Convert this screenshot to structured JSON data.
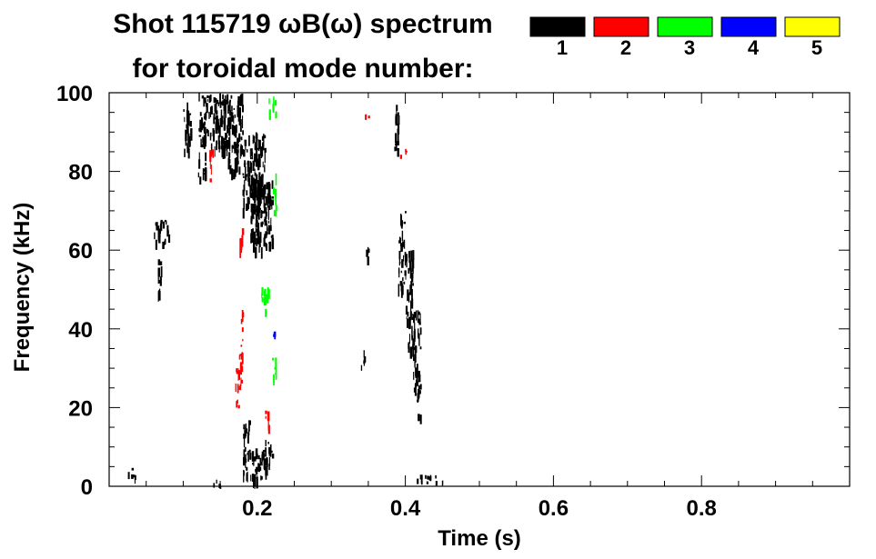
{
  "chart_data": {
    "type": "heatmap",
    "title_line1": "Shot 115719 ωB(ω) spectrum",
    "title_line2": "for toroidal mode number:",
    "xlabel": "Time (s)",
    "ylabel": "Frequency (kHz)",
    "xlim": [
      0.0,
      1.0
    ],
    "ylim": [
      0,
      100
    ],
    "x_ticks": [
      "0.2",
      "0.4",
      "0.6",
      "0.8"
    ],
    "x_tick_values": [
      0.2,
      0.4,
      0.6,
      0.8
    ],
    "y_ticks": [
      "0",
      "20",
      "40",
      "60",
      "80",
      "100"
    ],
    "y_tick_values": [
      0,
      20,
      40,
      60,
      80,
      100
    ],
    "legend": {
      "placement": "top-right",
      "entries": [
        {
          "label": "1",
          "color": "#000000"
        },
        {
          "label": "2",
          "color": "#ff0000"
        },
        {
          "label": "3",
          "color": "#00ff00"
        },
        {
          "label": "4",
          "color": "#0000ff"
        },
        {
          "label": "5",
          "color": "#ffff00"
        }
      ]
    },
    "series": [
      {
        "mode": "1",
        "color": "#000000",
        "blobs": [
          {
            "t": [
              0.12,
              0.13
            ],
            "f": [
              78,
              100
            ]
          },
          {
            "t": [
              0.13,
              0.16
            ],
            "f": [
              85,
              100
            ]
          },
          {
            "t": [
              0.16,
              0.18
            ],
            "f": [
              80,
              100
            ]
          },
          {
            "t": [
              0.18,
              0.21
            ],
            "f": [
              70,
              90
            ]
          },
          {
            "t": [
              0.19,
              0.22
            ],
            "f": [
              60,
              80
            ]
          },
          {
            "t": [
              0.1,
              0.11
            ],
            "f": [
              85,
              98
            ]
          },
          {
            "t": [
              0.065,
              0.07
            ],
            "f": [
              47,
              58
            ]
          },
          {
            "t": [
              0.06,
              0.08
            ],
            "f": [
              62,
              68
            ]
          },
          {
            "t": [
              0.18,
              0.21
            ],
            "f": [
              2,
              10
            ]
          },
          {
            "t": [
              0.21,
              0.22
            ],
            "f": [
              4,
              12
            ]
          },
          {
            "t": [
              0.18,
              0.19
            ],
            "f": [
              12,
              18
            ]
          },
          {
            "t": [
              0.025,
              0.035
            ],
            "f": [
              2,
              5
            ]
          },
          {
            "t": [
              0.14,
              0.15
            ],
            "f": [
              0,
              2
            ]
          },
          {
            "t": [
              0.385,
              0.39
            ],
            "f": [
              85,
              100
            ]
          },
          {
            "t": [
              0.39,
              0.4
            ],
            "f": [
              50,
              70
            ]
          },
          {
            "t": [
              0.4,
              0.41
            ],
            "f": [
              35,
              60
            ]
          },
          {
            "t": [
              0.41,
              0.42
            ],
            "f": [
              25,
              45
            ]
          },
          {
            "t": [
              0.415,
              0.42
            ],
            "f": [
              18,
              28
            ]
          },
          {
            "t": [
              0.34,
              0.345
            ],
            "f": [
              30,
              35
            ]
          },
          {
            "t": [
              0.345,
              0.35
            ],
            "f": [
              58,
              62
            ]
          },
          {
            "t": [
              0.41,
              0.45
            ],
            "f": [
              1,
              3
            ]
          }
        ]
      },
      {
        "mode": "2",
        "color": "#ff0000",
        "blobs": [
          {
            "t": [
              0.135,
              0.14
            ],
            "f": [
              77,
              86
            ]
          },
          {
            "t": [
              0.175,
              0.18
            ],
            "f": [
              60,
              68
            ]
          },
          {
            "t": [
              0.175,
              0.18
            ],
            "f": [
              25,
              45
            ]
          },
          {
            "t": [
              0.17,
              0.175
            ],
            "f": [
              20,
              30
            ]
          },
          {
            "t": [
              0.21,
              0.215
            ],
            "f": [
              15,
              20
            ]
          },
          {
            "t": [
              0.345,
              0.35
            ],
            "f": [
              94,
              96
            ]
          },
          {
            "t": [
              0.39,
              0.4
            ],
            "f": [
              84,
              86
            ]
          }
        ]
      },
      {
        "mode": "3",
        "color": "#00ff00",
        "blobs": [
          {
            "t": [
              0.205,
              0.215
            ],
            "f": [
              45,
              52
            ]
          },
          {
            "t": [
              0.22,
              0.225
            ],
            "f": [
              28,
              35
            ]
          },
          {
            "t": [
              0.215,
              0.225
            ],
            "f": [
              95,
              100
            ]
          },
          {
            "t": [
              0.22,
              0.225
            ],
            "f": [
              70,
              80
            ]
          }
        ]
      },
      {
        "mode": "4",
        "color": "#0000ff",
        "blobs": [
          {
            "t": [
              0.22,
              0.223
            ],
            "f": [
              38,
              40
            ]
          }
        ]
      }
    ]
  }
}
